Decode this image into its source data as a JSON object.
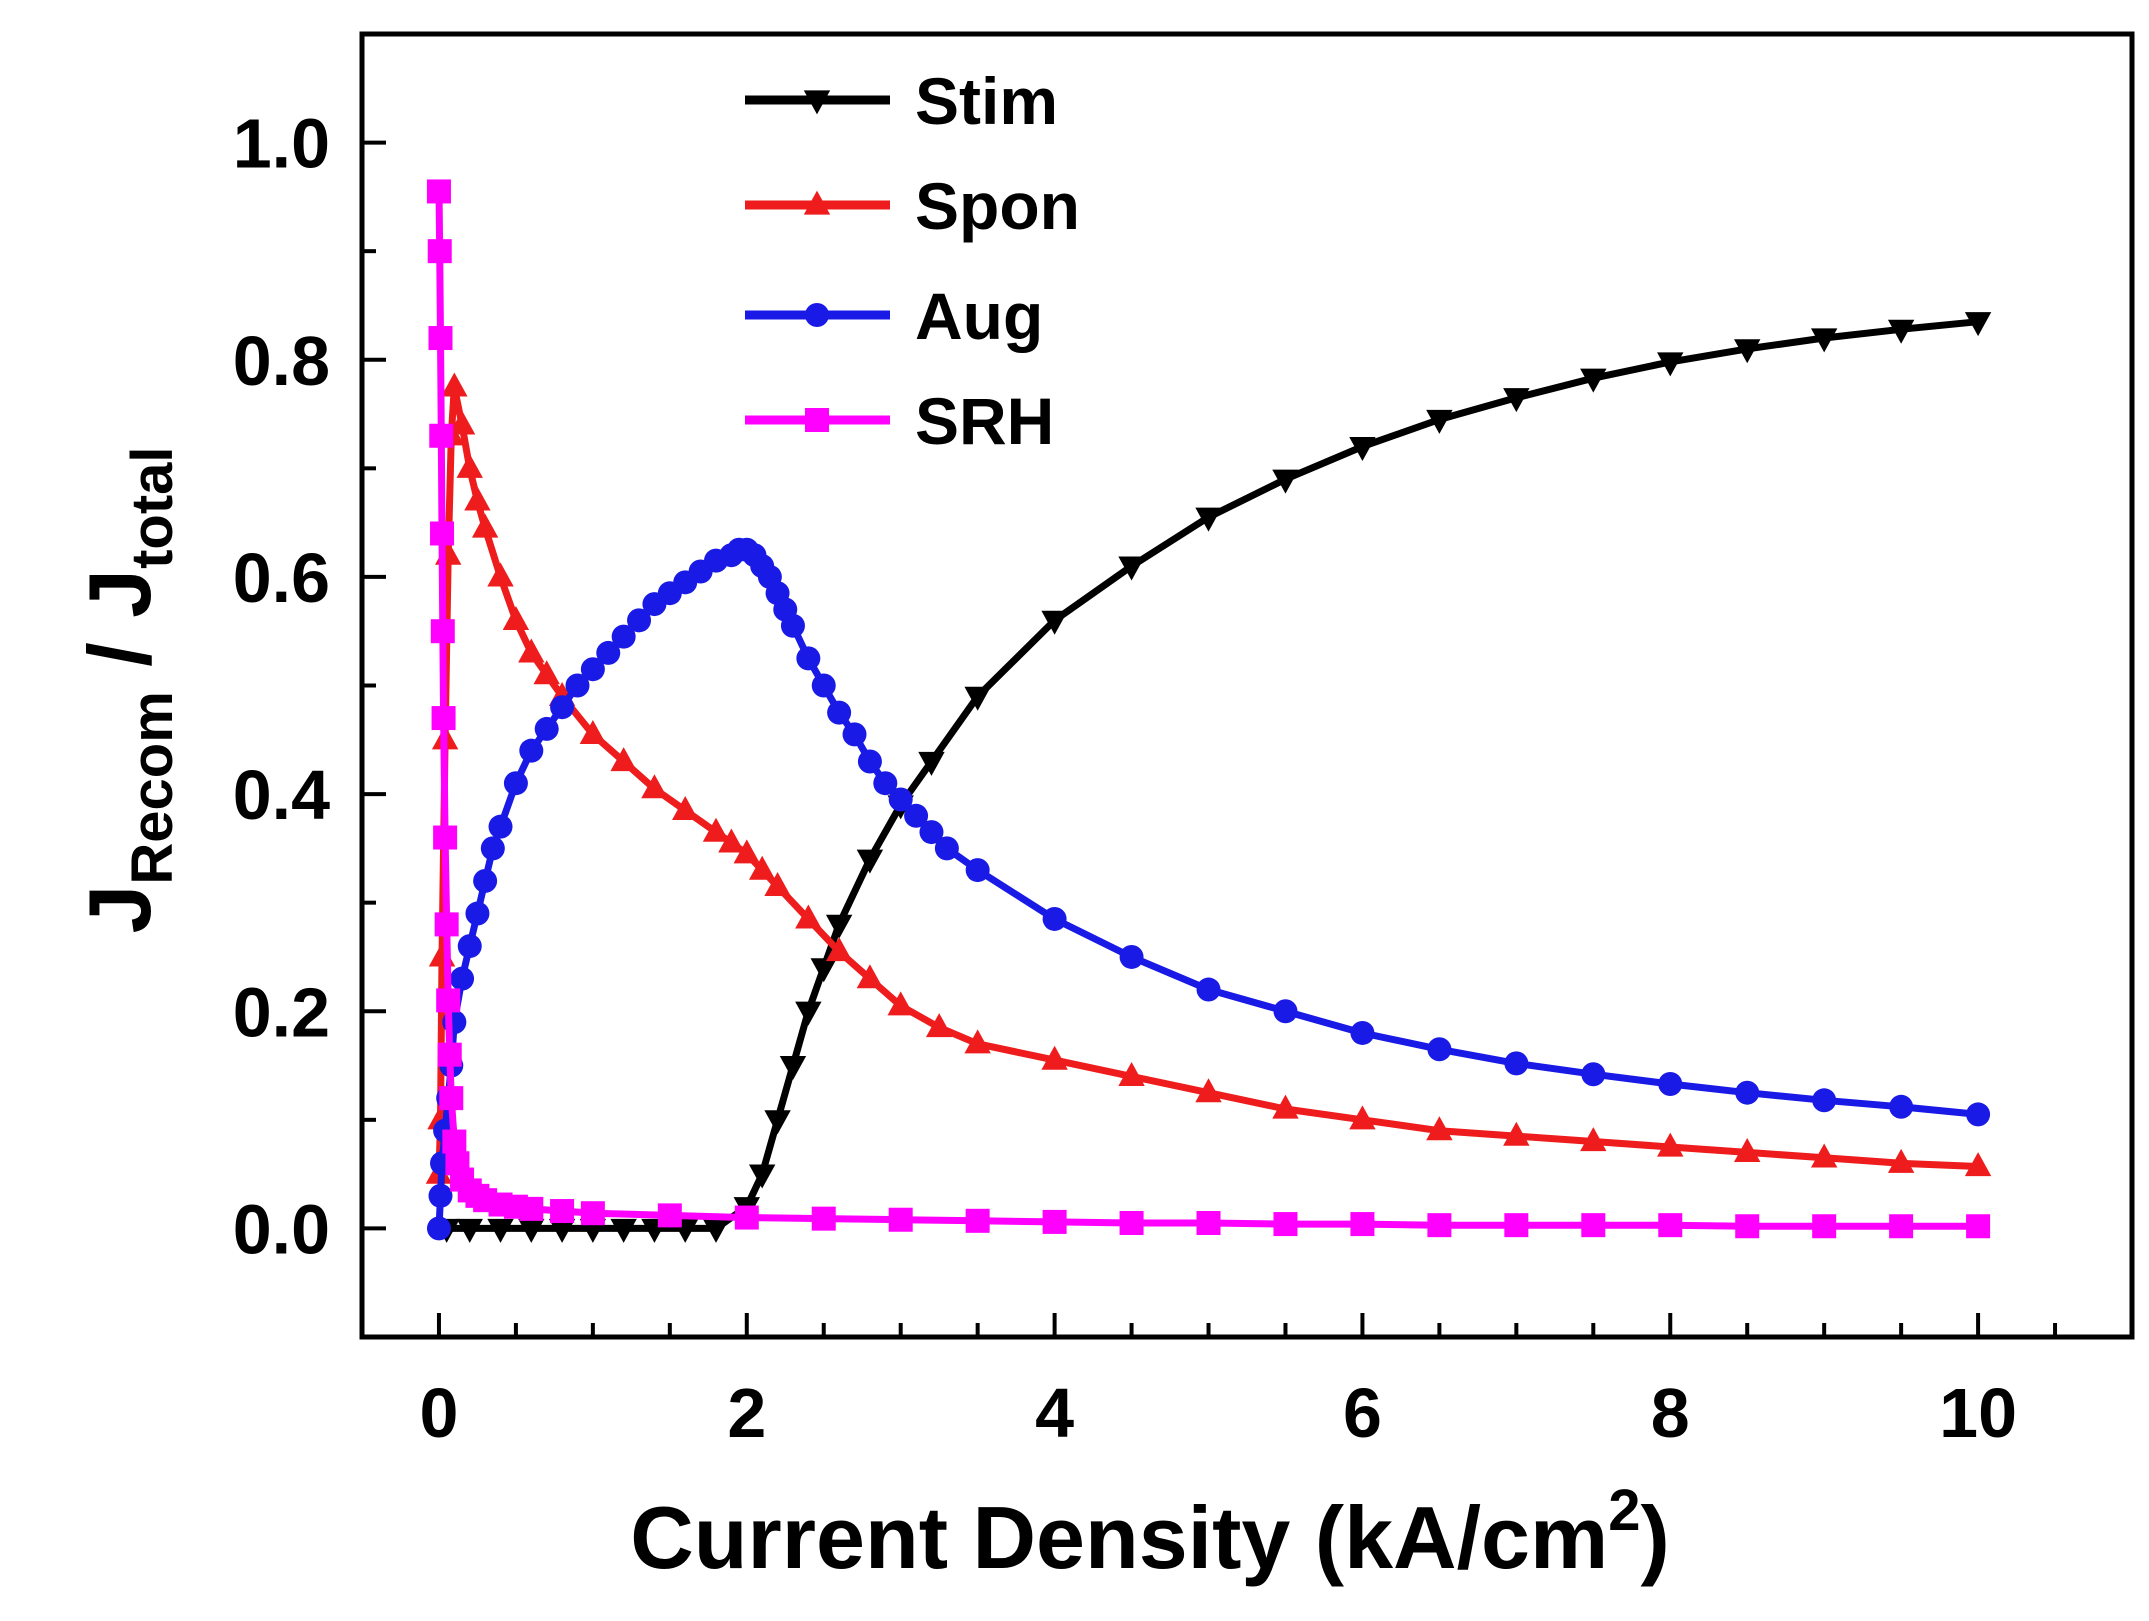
{
  "chart_data": {
    "type": "line",
    "title": "",
    "xlabel": {
      "main": "Current Density (kA/cm",
      "superscript": "2",
      "close": ")"
    },
    "ylabel": {
      "j1": "J",
      "sub1": "Recom",
      "slash": " / ",
      "j2": "J",
      "sub2": "total"
    },
    "xlim": [
      -0.5,
      11
    ],
    "ylim": [
      -0.1,
      1.1
    ],
    "xticks": [
      0,
      2,
      4,
      6,
      8,
      10
    ],
    "xtick_labels": [
      "0",
      "2",
      "4",
      "6",
      "8",
      "10"
    ],
    "yticks": [
      0.0,
      0.2,
      0.4,
      0.6,
      0.8,
      1.0
    ],
    "ytick_labels": [
      "0.0",
      "0.2",
      "0.4",
      "0.6",
      "0.8",
      "1.0"
    ],
    "legend_position": "top-center",
    "series": [
      {
        "name": "Stim",
        "color": "#000000",
        "marker": "triangle-down",
        "x": [
          0.05,
          0.2,
          0.4,
          0.6,
          0.8,
          1.0,
          1.2,
          1.4,
          1.6,
          1.8,
          2.0,
          2.1,
          2.2,
          2.3,
          2.4,
          2.5,
          2.6,
          2.8,
          3.0,
          3.2,
          3.5,
          4.0,
          4.5,
          5.0,
          5.5,
          6.0,
          6.5,
          7.0,
          7.5,
          8.0,
          8.5,
          9.0,
          9.5,
          10.0
        ],
        "y": [
          0.0,
          0.0,
          0.0,
          0.0,
          0.0,
          0.0,
          0.0,
          0.0,
          0.0,
          0.0,
          0.02,
          0.05,
          0.1,
          0.15,
          0.2,
          0.24,
          0.28,
          0.34,
          0.39,
          0.43,
          0.49,
          0.56,
          0.61,
          0.655,
          0.69,
          0.72,
          0.745,
          0.765,
          0.783,
          0.798,
          0.81,
          0.82,
          0.828,
          0.835
        ]
      },
      {
        "name": "Spon",
        "color": "#ee1c1c",
        "marker": "triangle-up",
        "x": [
          0.0,
          0.01,
          0.02,
          0.04,
          0.06,
          0.08,
          0.1,
          0.15,
          0.2,
          0.25,
          0.3,
          0.4,
          0.5,
          0.6,
          0.7,
          0.8,
          1.0,
          1.2,
          1.4,
          1.6,
          1.8,
          1.9,
          2.0,
          2.1,
          2.2,
          2.4,
          2.6,
          2.8,
          3.0,
          3.25,
          3.5,
          4.0,
          4.5,
          5.0,
          5.5,
          6.0,
          6.5,
          7.0,
          7.5,
          8.0,
          8.5,
          9.0,
          9.5,
          10.0
        ],
        "y": [
          0.05,
          0.1,
          0.25,
          0.45,
          0.62,
          0.73,
          0.775,
          0.74,
          0.7,
          0.67,
          0.645,
          0.6,
          0.56,
          0.53,
          0.51,
          0.49,
          0.455,
          0.43,
          0.405,
          0.385,
          0.365,
          0.355,
          0.345,
          0.33,
          0.315,
          0.285,
          0.255,
          0.23,
          0.205,
          0.185,
          0.17,
          0.155,
          0.14,
          0.125,
          0.11,
          0.1,
          0.09,
          0.085,
          0.08,
          0.075,
          0.07,
          0.065,
          0.06,
          0.057
        ]
      },
      {
        "name": "Aug",
        "color": "#1a1ae6",
        "marker": "circle",
        "x": [
          0.0,
          0.01,
          0.02,
          0.04,
          0.06,
          0.08,
          0.1,
          0.15,
          0.2,
          0.25,
          0.3,
          0.35,
          0.4,
          0.5,
          0.6,
          0.7,
          0.8,
          0.9,
          1.0,
          1.1,
          1.2,
          1.3,
          1.4,
          1.5,
          1.6,
          1.7,
          1.8,
          1.9,
          1.95,
          2.0,
          2.05,
          2.1,
          2.15,
          2.2,
          2.25,
          2.3,
          2.4,
          2.5,
          2.6,
          2.7,
          2.8,
          2.9,
          3.0,
          3.1,
          3.2,
          3.3,
          3.5,
          4.0,
          4.5,
          5.0,
          5.5,
          6.0,
          6.5,
          7.0,
          7.5,
          8.0,
          8.5,
          9.0,
          9.5,
          10.0
        ],
        "y": [
          0.0,
          0.03,
          0.06,
          0.09,
          0.12,
          0.15,
          0.19,
          0.23,
          0.26,
          0.29,
          0.32,
          0.35,
          0.37,
          0.41,
          0.44,
          0.46,
          0.48,
          0.5,
          0.515,
          0.53,
          0.545,
          0.56,
          0.575,
          0.585,
          0.595,
          0.605,
          0.615,
          0.62,
          0.625,
          0.625,
          0.62,
          0.61,
          0.6,
          0.585,
          0.57,
          0.555,
          0.525,
          0.5,
          0.475,
          0.455,
          0.43,
          0.41,
          0.395,
          0.38,
          0.365,
          0.35,
          0.33,
          0.285,
          0.25,
          0.22,
          0.2,
          0.18,
          0.165,
          0.152,
          0.142,
          0.133,
          0.125,
          0.118,
          0.112,
          0.105
        ]
      },
      {
        "name": "SRH",
        "color": "#ff00ff",
        "marker": "square",
        "x": [
          0.0,
          0.005,
          0.01,
          0.015,
          0.02,
          0.025,
          0.03,
          0.04,
          0.05,
          0.06,
          0.07,
          0.08,
          0.1,
          0.12,
          0.15,
          0.2,
          0.25,
          0.3,
          0.4,
          0.5,
          0.6,
          0.8,
          1.0,
          1.5,
          2.0,
          2.5,
          3.0,
          3.5,
          4.0,
          4.5,
          5.0,
          5.5,
          6.0,
          6.5,
          7.0,
          7.5,
          8.0,
          8.5,
          9.0,
          9.5,
          10.0
        ],
        "y": [
          0.955,
          0.9,
          0.82,
          0.73,
          0.64,
          0.55,
          0.47,
          0.36,
          0.28,
          0.21,
          0.16,
          0.12,
          0.08,
          0.06,
          0.045,
          0.035,
          0.03,
          0.026,
          0.022,
          0.02,
          0.018,
          0.016,
          0.014,
          0.012,
          0.01,
          0.009,
          0.008,
          0.007,
          0.006,
          0.005,
          0.005,
          0.004,
          0.004,
          0.003,
          0.003,
          0.003,
          0.003,
          0.002,
          0.002,
          0.002,
          0.002
        ]
      }
    ]
  }
}
